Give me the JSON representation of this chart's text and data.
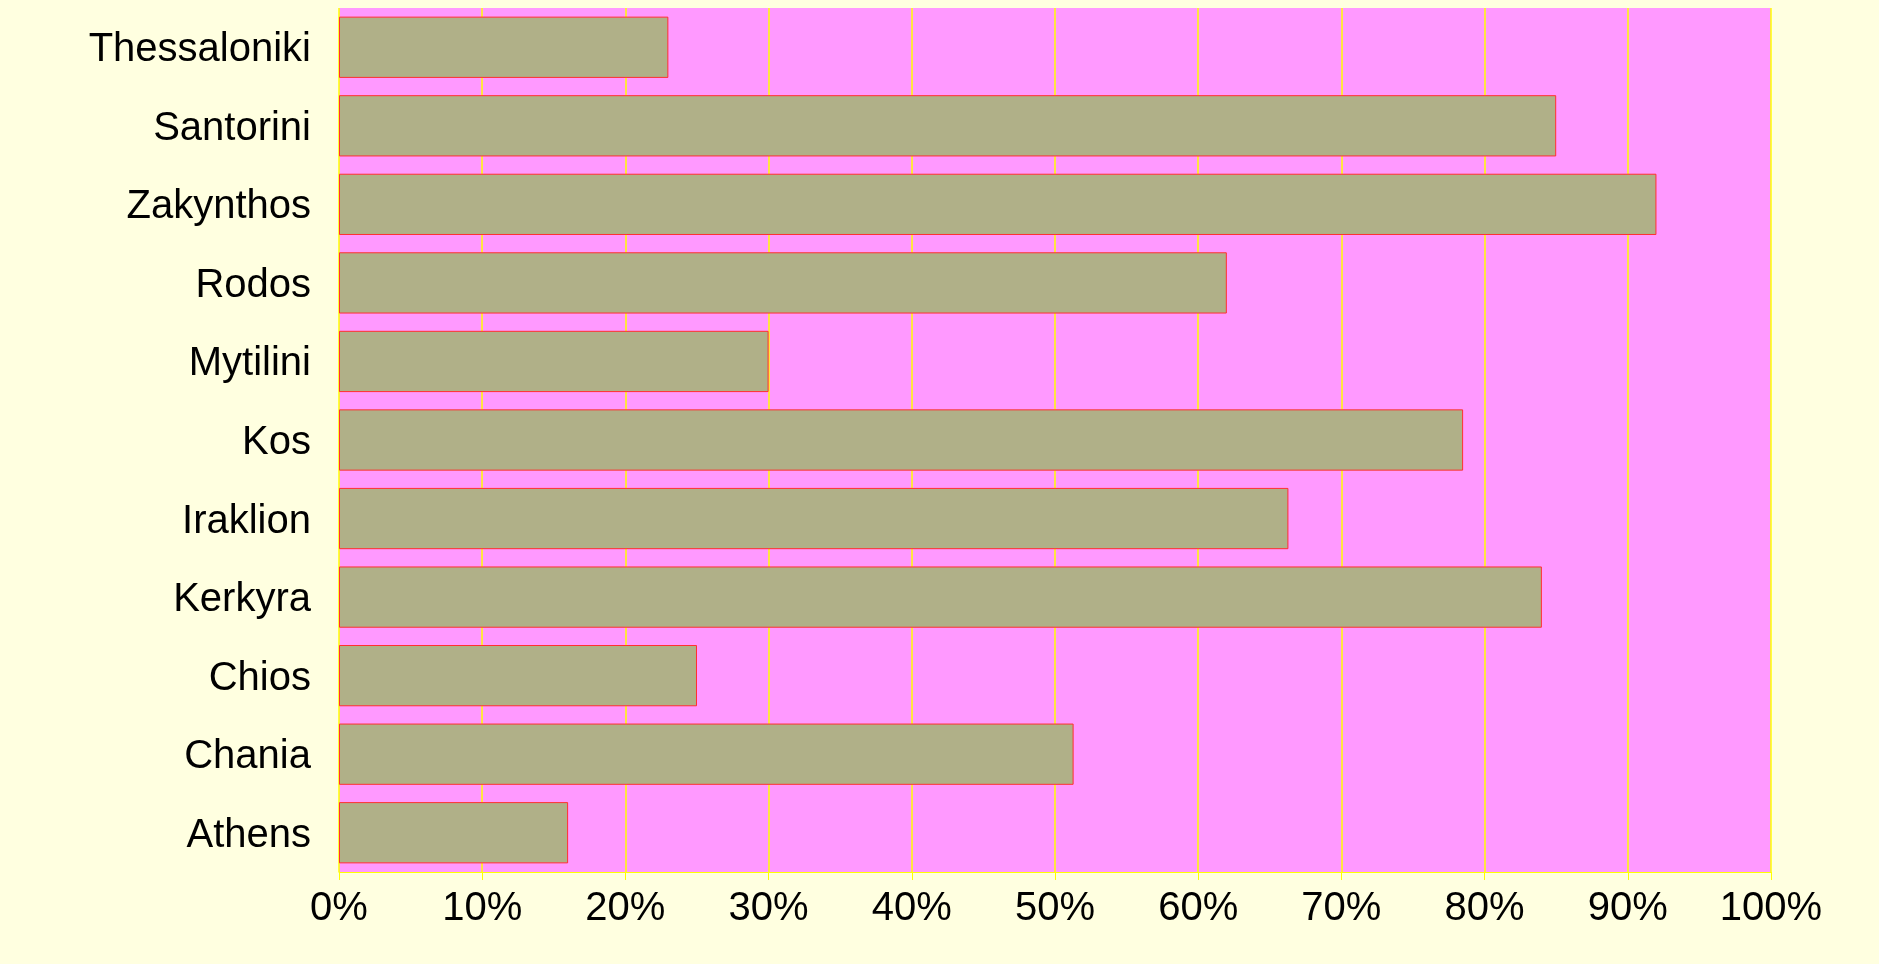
{
  "chart_data": {
    "type": "bar",
    "orientation": "horizontal",
    "categories": [
      "Thessaloniki",
      "Santorini",
      "Zakynthos",
      "Rodos",
      "Mytilini",
      "Kos",
      "Iraklion",
      "Kerkyra",
      "Chios",
      "Chania",
      "Athens"
    ],
    "values": [
      23,
      85,
      92,
      62,
      30,
      78.5,
      66.3,
      84,
      25,
      51.3,
      16
    ],
    "color": "#b0b088",
    "xlim": [
      0,
      100
    ],
    "xticks": [
      {
        "value": 0,
        "label": "0%"
      },
      {
        "value": 10,
        "label": "10%"
      },
      {
        "value": 20,
        "label": "20%"
      },
      {
        "value": 30,
        "label": "30%"
      },
      {
        "value": 40,
        "label": "40%"
      },
      {
        "value": 50,
        "label": "50%"
      },
      {
        "value": 60,
        "label": "60%"
      },
      {
        "value": 70,
        "label": "70%"
      },
      {
        "value": 80,
        "label": "80%"
      },
      {
        "value": 90,
        "label": "90%"
      },
      {
        "value": 100,
        "label": "100%"
      }
    ],
    "grid": "x"
  }
}
